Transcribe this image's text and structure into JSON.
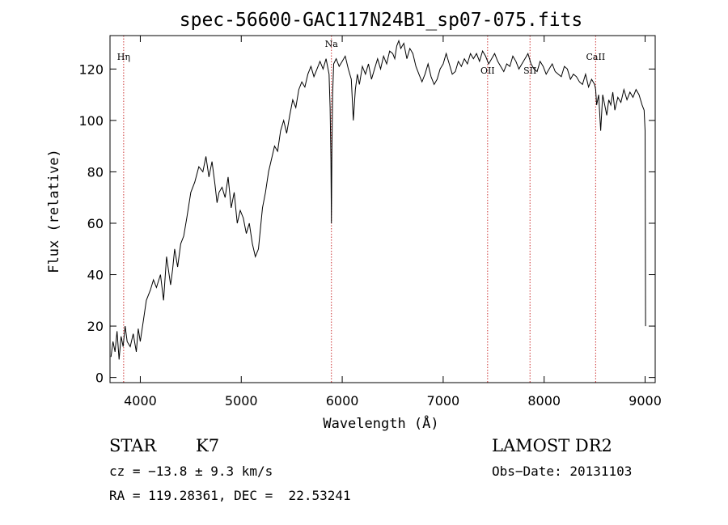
{
  "chart_data": {
    "type": "line",
    "title": "spec-56600-GAC117N24B1_sp07-075.fits",
    "xlabel": "Wavelength (Å)",
    "ylabel": "Flux (relative)",
    "xlim": [
      3700,
      9100
    ],
    "ylim": [
      -2,
      133
    ],
    "xticks": [
      4000,
      5000,
      6000,
      7000,
      8000,
      9000
    ],
    "yticks": [
      0,
      20,
      40,
      60,
      80,
      100,
      120
    ],
    "grid": false,
    "line_color": "#000000",
    "marker_color": "#cc3333",
    "spectral_lines": [
      {
        "name": "Hη",
        "wavelength": 3835
      },
      {
        "name": "Na",
        "wavelength": 5893
      },
      {
        "name": "OII",
        "wavelength": 7440
      },
      {
        "name": "SII",
        "wavelength": 7860
      },
      {
        "name": "CaII",
        "wavelength": 8510
      }
    ],
    "series": [
      {
        "x": [
          3710,
          3730,
          3750,
          3770,
          3790,
          3810,
          3830,
          3850,
          3870,
          3900,
          3930,
          3960,
          3980,
          4000,
          4030,
          4060,
          4100,
          4130,
          4160,
          4200,
          4230,
          4260,
          4300,
          4320,
          4340,
          4370,
          4400,
          4430,
          4460,
          4500,
          4540,
          4580,
          4620,
          4650,
          4680,
          4710,
          4740,
          4760,
          4780,
          4810,
          4840,
          4870,
          4900,
          4930,
          4960,
          4990,
          5020,
          5050,
          5080,
          5110,
          5140,
          5170,
          5190,
          5210,
          5240,
          5270,
          5300,
          5330,
          5360,
          5390,
          5420,
          5450,
          5480,
          5510,
          5540,
          5570,
          5600,
          5630,
          5660,
          5690,
          5720,
          5750,
          5780,
          5810,
          5840,
          5870,
          5880,
          5888,
          5893,
          5898,
          5905,
          5915,
          5940,
          5970,
          6000,
          6030,
          6060,
          6090,
          6110,
          6130,
          6150,
          6170,
          6200,
          6230,
          6260,
          6290,
          6320,
          6350,
          6380,
          6410,
          6440,
          6470,
          6500,
          6520,
          6540,
          6560,
          6580,
          6610,
          6640,
          6670,
          6700,
          6730,
          6760,
          6790,
          6820,
          6850,
          6880,
          6910,
          6940,
          6970,
          7000,
          7030,
          7060,
          7090,
          7120,
          7150,
          7180,
          7210,
          7240,
          7270,
          7300,
          7330,
          7360,
          7390,
          7420,
          7450,
          7480,
          7510,
          7540,
          7570,
          7600,
          7630,
          7660,
          7690,
          7720,
          7750,
          7780,
          7810,
          7840,
          7870,
          7900,
          7930,
          7960,
          7990,
          8020,
          8050,
          8080,
          8110,
          8140,
          8170,
          8200,
          8230,
          8260,
          8290,
          8320,
          8350,
          8380,
          8410,
          8440,
          8470,
          8500,
          8510,
          8520,
          8540,
          8560,
          8580,
          8600,
          8620,
          8640,
          8660,
          8680,
          8700,
          8730,
          8760,
          8790,
          8820,
          8850,
          8880,
          8910,
          8940,
          8970,
          8990,
          9000,
          9005
        ],
        "y": [
          8,
          14,
          10,
          18,
          7,
          16,
          12,
          20,
          14,
          12,
          17,
          10,
          19,
          14,
          22,
          30,
          34,
          38,
          35,
          40,
          30,
          47,
          36,
          42,
          50,
          43,
          52,
          55,
          62,
          72,
          76,
          82,
          80,
          86,
          78,
          84,
          75,
          68,
          72,
          74,
          70,
          78,
          66,
          72,
          60,
          65,
          62,
          56,
          60,
          52,
          47,
          50,
          58,
          66,
          72,
          80,
          85,
          90,
          88,
          96,
          100,
          95,
          102,
          108,
          105,
          112,
          115,
          113,
          118,
          121,
          117,
          120,
          123,
          120,
          124,
          118,
          105,
          85,
          60,
          88,
          110,
          122,
          124,
          121,
          123,
          125,
          120,
          116,
          100,
          112,
          118,
          114,
          121,
          118,
          122,
          116,
          120,
          124,
          120,
          125,
          122,
          127,
          126,
          124,
          129,
          131,
          128,
          130,
          124,
          128,
          126,
          121,
          118,
          115,
          118,
          122,
          117,
          114,
          116,
          120,
          122,
          126,
          122,
          118,
          119,
          123,
          121,
          124,
          122,
          126,
          124,
          126,
          123,
          127,
          125,
          122,
          124,
          126,
          123,
          121,
          119,
          122,
          121,
          125,
          123,
          120,
          122,
          124,
          126,
          122,
          120,
          119,
          123,
          121,
          118,
          120,
          122,
          119,
          118,
          117,
          121,
          120,
          116,
          118,
          117,
          115,
          114,
          118,
          113,
          116,
          114,
          112,
          106,
          110,
          96,
          110,
          106,
          102,
          108,
          106,
          111,
          104,
          109,
          107,
          112,
          108,
          111,
          109,
          112,
          110,
          106,
          104,
          96,
          20
        ]
      }
    ]
  },
  "info": {
    "object_class": "STAR",
    "subclass": "K7",
    "survey": "LAMOST DR2",
    "cz": "cz = −13.8 ± 9.3 km/s",
    "obs_date": "Obs−Date: 20131103",
    "coords": "RA = 119.28361, DEC =  22.53241"
  }
}
